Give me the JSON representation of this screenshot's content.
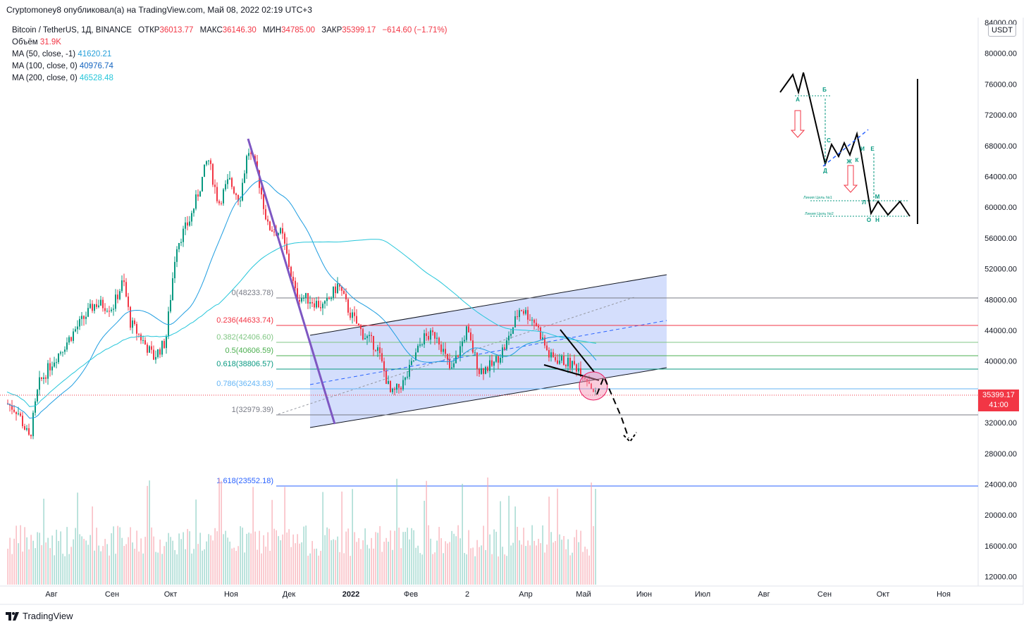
{
  "publisher_line": "Cryptomoney8 опубликовал(а) на TradingView.com, Май 08, 2022 02:19 UTC+3",
  "legend": {
    "symbol": "Bitcoin / TetherUS, 1Д, BINANCE",
    "open_label": "ОТКР",
    "open": "36013.77",
    "high_label": "МАКС",
    "high": "36146.30",
    "low_label": "МИН",
    "low": "34785.00",
    "close_label": "ЗАКР",
    "close": "35399.17",
    "change": "−614.60 (−1.71%)",
    "volume_label": "Объём",
    "volume": "31.9K",
    "ma50_label": "MA (50, close, -1)",
    "ma50": "41620.21",
    "ma100_label": "MA (100, close, 0)",
    "ma100": "40976.74",
    "ma200_label": "MA (200, close, 0)",
    "ma200": "46528.48"
  },
  "currency_badge": "USDT",
  "last_price_tag": {
    "price": "35399.17",
    "countdown": "41:00"
  },
  "price_axis": [
    "84000.00",
    "80000.00",
    "76000.00",
    "72000.00",
    "68000.00",
    "64000.00",
    "60000.00",
    "56000.00",
    "52000.00",
    "48000.00",
    "44000.00",
    "40000.00",
    "36000.00",
    "32000.00",
    "28000.00",
    "24000.00",
    "20000.00",
    "16000.00",
    "12000.00"
  ],
  "time_axis": [
    "Авг",
    "Сен",
    "Окт",
    "Ноя",
    "Дек",
    "2022",
    "Фев",
    "2",
    "Апр",
    "Май",
    "Июн",
    "Июл",
    "Авг",
    "Сен",
    "Окт",
    "Ноя"
  ],
  "fib_levels": [
    {
      "label": "0(48233.78)",
      "color": "#787b86"
    },
    {
      "label": "0.236(44633.74)",
      "color": "#f23645"
    },
    {
      "label": "0.382(42406.60)",
      "color": "#81c784"
    },
    {
      "label": "0.5(40606.59)",
      "color": "#4caf50"
    },
    {
      "label": "0.618(38806.57)",
      "color": "#089981"
    },
    {
      "label": "0.786(36243.83)",
      "color": "#64b5f6"
    },
    {
      "label": "1(32979.39)",
      "color": "#787b86"
    },
    {
      "label": "1.618(23552.18)",
      "color": "#2962ff"
    }
  ],
  "inset_diagram": {
    "letters": [
      "А",
      "Б",
      "С",
      "Д",
      "Е",
      "Ж",
      "К",
      "И",
      "М",
      "Л",
      "О",
      "Н"
    ],
    "target1": "Линия Цель №1",
    "target2": "Линия Цель №2"
  },
  "colors": {
    "up": "#089981",
    "down": "#f23645",
    "ma50": "#1e9de0",
    "ma100": "#1565c0",
    "ma200": "#26c6da",
    "channel_fill": "#c5d3fb",
    "trend": "#7e57c2"
  },
  "footer": {
    "brand": "TradingView"
  }
}
